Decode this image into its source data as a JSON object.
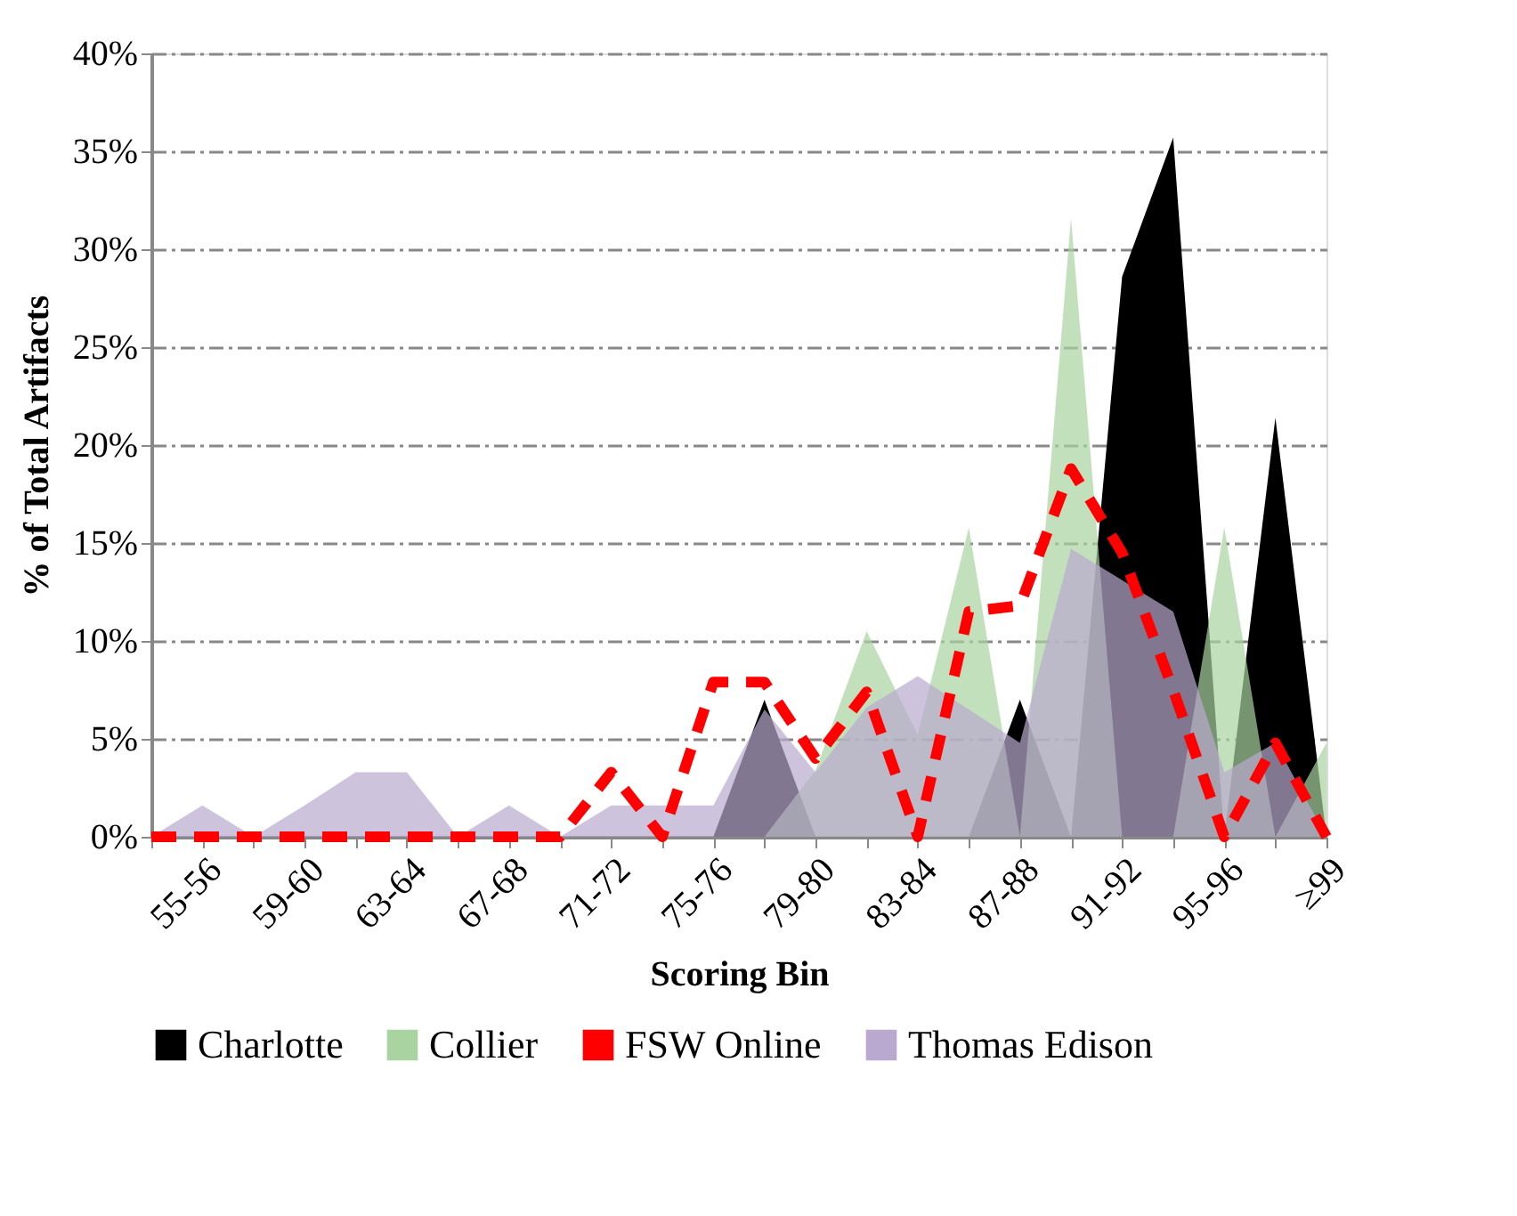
{
  "chart_data": {
    "type": "area",
    "xlabel": "Scoring Bin",
    "ylabel": "% of Total Artifacts",
    "categories": [
      null,
      "55-56",
      null,
      "59-60",
      null,
      "63-64",
      null,
      "67-68",
      null,
      "71-72",
      null,
      "75-76",
      null,
      "79-80",
      null,
      "83-84",
      null,
      "87-88",
      null,
      "91-92",
      null,
      "95-96",
      null,
      "≥99"
    ],
    "series": [
      {
        "name": "Charlotte",
        "type": "area",
        "color": "#000000",
        "values": [
          0,
          0,
          0,
          0,
          0,
          0,
          0,
          0,
          0,
          0,
          0,
          0,
          7.0,
          0,
          0,
          0,
          0,
          7.0,
          0,
          28.6,
          35.7,
          0,
          21.4,
          0
        ]
      },
      {
        "name": "Collier",
        "type": "area",
        "color": "#a9d3a0",
        "values": [
          0,
          0,
          0,
          0,
          0,
          0,
          0,
          0,
          0,
          0,
          0,
          0,
          0,
          3.4,
          10.5,
          5.2,
          15.8,
          0,
          31.6,
          0,
          0,
          15.8,
          0,
          4.8
        ]
      },
      {
        "name": "FSW Online",
        "type": "line",
        "color": "#ff0000",
        "line_style": "dashed",
        "values": [
          0,
          0,
          0,
          0,
          0,
          0,
          0,
          0,
          0,
          3.3,
          0,
          7.9,
          7.9,
          4.0,
          7.4,
          0,
          11.5,
          11.8,
          18.8,
          14.5,
          7.5,
          0,
          4.8,
          0
        ]
      },
      {
        "name": "Thomas Edison",
        "type": "area",
        "color": "#b9a9cf",
        "values": [
          0,
          1.6,
          0,
          1.6,
          3.3,
          3.3,
          0,
          1.6,
          0,
          1.6,
          1.6,
          1.6,
          6.5,
          3.3,
          6.6,
          8.2,
          6.5,
          4.8,
          14.7,
          13.1,
          11.5,
          3.3,
          4.8,
          0
        ]
      }
    ],
    "ylim": [
      0,
      40
    ],
    "yticks": [
      {
        "value": 0,
        "label": "0%"
      },
      {
        "value": 5,
        "label": "5%"
      },
      {
        "value": 10,
        "label": "10%"
      },
      {
        "value": 15,
        "label": "15%"
      },
      {
        "value": 20,
        "label": "20%"
      },
      {
        "value": 25,
        "label": "25%"
      },
      {
        "value": 30,
        "label": "30%"
      },
      {
        "value": 35,
        "label": "35%"
      },
      {
        "value": 40,
        "label": "40%"
      }
    ],
    "grid": "y",
    "legend": "bottom"
  }
}
